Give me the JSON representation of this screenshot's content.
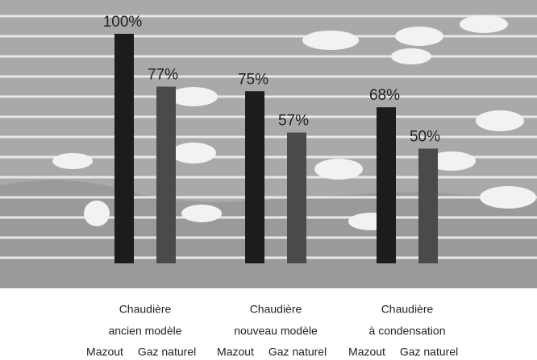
{
  "chart_data": {
    "type": "bar",
    "categories": [
      [
        "Chaudière",
        "ancien modèle"
      ],
      [
        "Chaudière",
        "nouveau modèle"
      ],
      [
        "Chaudière",
        "à condensation"
      ]
    ],
    "series": [
      {
        "name": "Mazout",
        "color": "#1c1c1c",
        "values": [
          100,
          75,
          68
        ],
        "value_labels": [
          "100%",
          "75%",
          "68%"
        ]
      },
      {
        "name": "Gaz naturel",
        "color": "#4a4a4a",
        "values": [
          77,
          57,
          50
        ],
        "value_labels": [
          "77%",
          "57%",
          "50%"
        ]
      }
    ]
  }
}
